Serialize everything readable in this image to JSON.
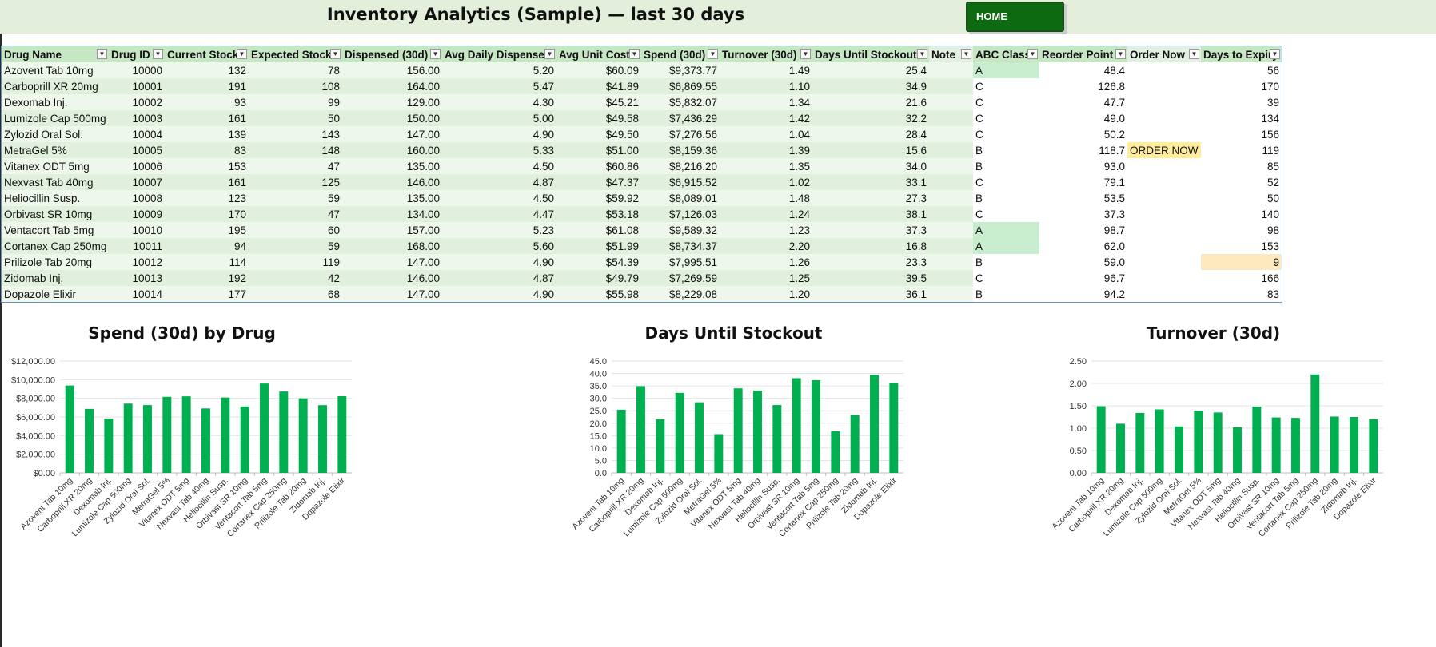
{
  "header": {
    "title": "Inventory Analytics (Sample) — last 30 days",
    "home_label": "HOME"
  },
  "colors": {
    "banner": "#e3efdb",
    "header": "#c6e6c4",
    "bar": "#00b050",
    "order_now": "#ffec9c",
    "abc_a": "#c8ecce"
  },
  "table": {
    "columns": [
      "Drug Name",
      "Drug ID",
      "Current Stock",
      "Expected Stock",
      "Dispensed (30d)",
      "Avg Daily Dispense",
      "Avg Unit Cost",
      "Spend (30d)",
      "Turnover (30d)",
      "Days Until Stockout",
      "Note",
      "ABC Class",
      "Reorder Point",
      "Order Now",
      "Days to Expiry"
    ],
    "rows": [
      [
        "Azovent Tab 10mg",
        "10000",
        "132",
        "78",
        "156.00",
        "5.20",
        "$60.09",
        "$9,373.77",
        "1.49",
        "25.4",
        "",
        "A",
        "48.4",
        "",
        "56"
      ],
      [
        "Carboprill XR 20mg",
        "10001",
        "191",
        "108",
        "164.00",
        "5.47",
        "$41.89",
        "$6,869.55",
        "1.10",
        "34.9",
        "",
        "C",
        "126.8",
        "",
        "170"
      ],
      [
        "Dexomab Inj.",
        "10002",
        "93",
        "99",
        "129.00",
        "4.30",
        "$45.21",
        "$5,832.07",
        "1.34",
        "21.6",
        "",
        "C",
        "47.7",
        "",
        "39"
      ],
      [
        "Lumizole Cap 500mg",
        "10003",
        "161",
        "50",
        "150.00",
        "5.00",
        "$49.58",
        "$7,436.29",
        "1.42",
        "32.2",
        "",
        "C",
        "49.0",
        "",
        "134"
      ],
      [
        "Zylozid Oral Sol.",
        "10004",
        "139",
        "143",
        "147.00",
        "4.90",
        "$49.50",
        "$7,276.56",
        "1.04",
        "28.4",
        "",
        "C",
        "50.2",
        "",
        "156"
      ],
      [
        "MetraGel 5%",
        "10005",
        "83",
        "148",
        "160.00",
        "5.33",
        "$51.00",
        "$8,159.36",
        "1.39",
        "15.6",
        "",
        "B",
        "118.7",
        "ORDER NOW",
        "119"
      ],
      [
        "Vitanex ODT 5mg",
        "10006",
        "153",
        "47",
        "135.00",
        "4.50",
        "$60.86",
        "$8,216.20",
        "1.35",
        "34.0",
        "",
        "B",
        "93.0",
        "",
        "85"
      ],
      [
        "Nexvast Tab 40mg",
        "10007",
        "161",
        "125",
        "146.00",
        "4.87",
        "$47.37",
        "$6,915.52",
        "1.02",
        "33.1",
        "",
        "C",
        "79.1",
        "",
        "52"
      ],
      [
        "Heliocillin Susp.",
        "10008",
        "123",
        "59",
        "135.00",
        "4.50",
        "$59.92",
        "$8,089.01",
        "1.48",
        "27.3",
        "",
        "B",
        "53.5",
        "",
        "50"
      ],
      [
        "Orbivast SR 10mg",
        "10009",
        "170",
        "47",
        "134.00",
        "4.47",
        "$53.18",
        "$7,126.03",
        "1.24",
        "38.1",
        "",
        "C",
        "37.3",
        "",
        "140"
      ],
      [
        "Ventacort Tab 5mg",
        "10010",
        "195",
        "60",
        "157.00",
        "5.23",
        "$61.08",
        "$9,589.32",
        "1.23",
        "37.3",
        "",
        "A",
        "98.7",
        "",
        "98"
      ],
      [
        "Cortanex Cap 250mg",
        "10011",
        "94",
        "59",
        "168.00",
        "5.60",
        "$51.99",
        "$8,734.37",
        "2.20",
        "16.8",
        "",
        "A",
        "62.0",
        "",
        "153"
      ],
      [
        "Prilizole Tab 20mg",
        "10012",
        "114",
        "119",
        "147.00",
        "4.90",
        "$54.39",
        "$7,995.51",
        "1.26",
        "23.3",
        "",
        "B",
        "59.0",
        "",
        "9"
      ],
      [
        "Zidomab Inj.",
        "10013",
        "192",
        "42",
        "146.00",
        "4.87",
        "$49.79",
        "$7,269.59",
        "1.25",
        "39.5",
        "",
        "C",
        "96.7",
        "",
        "166"
      ],
      [
        "Dopazole Elixir",
        "10014",
        "177",
        "68",
        "147.00",
        "4.90",
        "$55.98",
        "$8,229.08",
        "1.20",
        "36.1",
        "",
        "B",
        "94.2",
        "",
        "83"
      ]
    ]
  },
  "chart_data": [
    {
      "type": "bar",
      "title": "Spend (30d) by Drug",
      "categories": [
        "Azovent Tab 10mg",
        "Carboprill XR 20mg",
        "Dexomab Inj.",
        "Lumizole Cap 500mg",
        "Zylozid Oral Sol.",
        "MetraGel 5%",
        "Vitanex ODT 5mg",
        "Nexvast Tab 40mg",
        "Heliocillin Susp.",
        "Orbivast SR 10mg",
        "Ventacort Tab 5mg",
        "Cortanex Cap 250mg",
        "Prilizole Tab 20mg",
        "Zidomab Inj.",
        "Dopazole Elixir"
      ],
      "values": [
        9373.77,
        6869.55,
        5832.07,
        7436.29,
        7276.56,
        8159.36,
        8216.2,
        6915.52,
        8089.01,
        7126.03,
        9589.32,
        8734.37,
        7995.51,
        7269.59,
        8229.08
      ],
      "ylim": [
        0,
        12000
      ],
      "ticks": [
        "$0.00",
        "$2,000.00",
        "$4,000.00",
        "$6,000.00",
        "$8,000.00",
        "$10,000.00",
        "$12,000.00"
      ],
      "grid": true
    },
    {
      "type": "bar",
      "title": "Days Until Stockout",
      "categories": [
        "Azovent Tab 10mg",
        "Carboprill XR 20mg",
        "Dexomab Inj.",
        "Lumizole Cap 500mg",
        "Zylozid Oral Sol.",
        "MetraGel 5%",
        "Vitanex ODT 5mg",
        "Nexvast Tab 40mg",
        "Heliocillin Susp.",
        "Orbivast SR 10mg",
        "Ventacort Tab 5mg",
        "Cortanex Cap 250mg",
        "Prilizole Tab 20mg",
        "Zidomab Inj.",
        "Dopazole Elixir"
      ],
      "values": [
        25.4,
        34.9,
        21.6,
        32.2,
        28.4,
        15.6,
        34.0,
        33.1,
        27.3,
        38.1,
        37.3,
        16.8,
        23.3,
        39.5,
        36.1
      ],
      "ylim": [
        0,
        45
      ],
      "ticks": [
        "0.0",
        "5.0",
        "10.0",
        "15.0",
        "20.0",
        "25.0",
        "30.0",
        "35.0",
        "40.0",
        "45.0"
      ],
      "grid": true
    },
    {
      "type": "bar",
      "title": "Turnover (30d)",
      "categories": [
        "Azovent Tab 10mg",
        "Carboprill XR 20mg",
        "Dexomab Inj.",
        "Lumizole Cap 500mg",
        "Zylozid Oral Sol.",
        "MetraGel 5%",
        "Vitanex ODT 5mg",
        "Nexvast Tab 40mg",
        "Heliocillin Susp.",
        "Orbivast SR 10mg",
        "Ventacort Tab 5mg",
        "Cortanex Cap 250mg",
        "Prilizole Tab 20mg",
        "Zidomab Inj.",
        "Dopazole Elixir"
      ],
      "values": [
        1.49,
        1.1,
        1.34,
        1.42,
        1.04,
        1.39,
        1.35,
        1.02,
        1.48,
        1.24,
        1.23,
        2.2,
        1.26,
        1.25,
        1.2
      ],
      "ylim": [
        0,
        2.5
      ],
      "ticks": [
        "0.00",
        "0.50",
        "1.00",
        "1.50",
        "2.00",
        "2.50"
      ],
      "grid": true
    }
  ]
}
